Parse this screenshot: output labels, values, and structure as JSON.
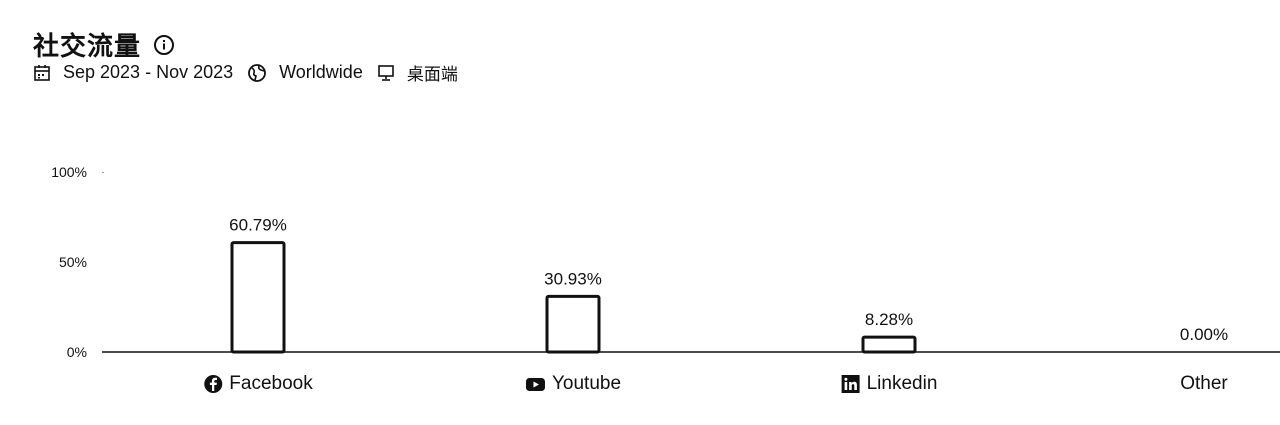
{
  "header": {
    "title": "社交流量",
    "date_range": "Sep 2023 - Nov 2023",
    "region": "Worldwide",
    "device": "桌面端"
  },
  "icons": {
    "info": "info-icon",
    "calendar": "calendar-icon",
    "globe": "globe-icon",
    "desktop": "desktop-icon"
  },
  "chart_data": {
    "type": "bar",
    "categories": [
      "Facebook",
      "Youtube",
      "Linkedin",
      "Other"
    ],
    "category_icons": [
      "facebook-icon",
      "youtube-icon",
      "linkedin-icon",
      ""
    ],
    "values": [
      60.79,
      30.93,
      8.28,
      0.0
    ],
    "data_labels": [
      "60.79%",
      "30.93%",
      "8.28%",
      "0.00%"
    ],
    "yticks": [
      "0%",
      "50%",
      "100%"
    ],
    "ylim": [
      0,
      100
    ],
    "grid": false,
    "legend": "none"
  }
}
